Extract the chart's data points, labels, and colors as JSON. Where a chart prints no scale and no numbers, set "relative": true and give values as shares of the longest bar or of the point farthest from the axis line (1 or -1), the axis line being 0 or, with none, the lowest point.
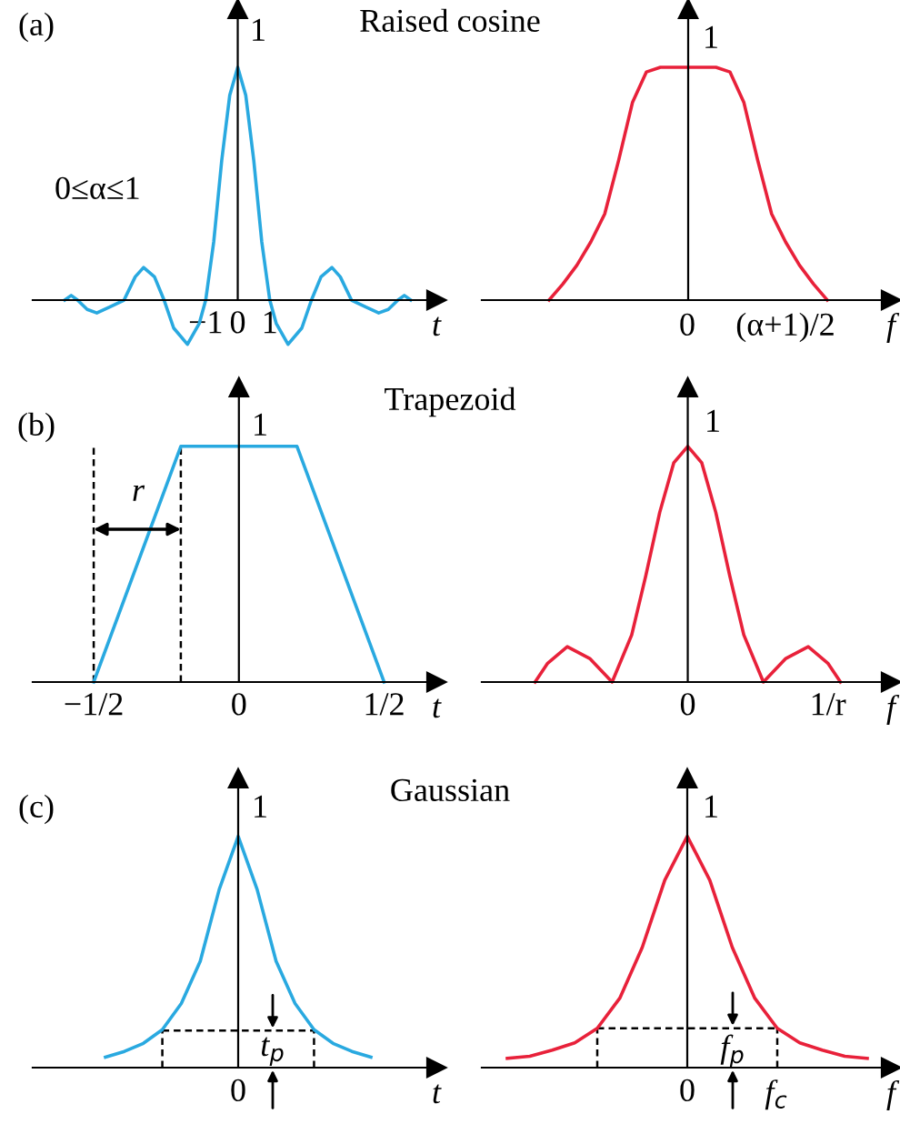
{
  "chart_data": [
    {
      "type": "line",
      "relative": true,
      "title": "Raised cosine",
      "xlabel": "t",
      "xlim": [
        -6.4,
        6.2
      ],
      "xticks": [
        {
          "value": -1,
          "label": "−1"
        },
        0,
        1
      ],
      "annotations": [
        "(a)",
        "0≤α≤1",
        "1"
      ],
      "series": [
        {
          "color": "#29a9e0",
          "x": [
            -5.4,
            -5.2,
            -5.0,
            -4.7,
            -4.4,
            -4.0,
            -3.55,
            -3.2,
            -2.94,
            -2.6,
            -2.3,
            -2.0,
            -1.57,
            -1.2,
            -1.0,
            -0.75,
            -0.5,
            -0.25,
            0,
            0.25,
            0.5,
            0.75,
            1.0,
            1.2,
            1.57,
            2.0,
            2.3,
            2.6,
            2.94,
            3.2,
            3.55,
            4.0,
            4.4,
            4.7,
            5.0,
            5.2,
            5.4
          ],
          "values": [
            0.0,
            0.02,
            0.0,
            -0.04,
            -0.055,
            -0.03,
            0.0,
            0.1,
            0.14,
            0.1,
            0.0,
            -0.12,
            -0.19,
            -0.1,
            0.0,
            0.25,
            0.6,
            0.88,
            1,
            0.88,
            0.6,
            0.25,
            0.0,
            -0.1,
            -0.19,
            -0.12,
            0.0,
            0.1,
            0.14,
            0.1,
            0.0,
            -0.03,
            -0.055,
            -0.04,
            0.0,
            0.02,
            0.0
          ]
        }
      ]
    },
    {
      "type": "line",
      "relative": true,
      "xlabel": "f",
      "categories": [
        null,
        null,
        null,
        null,
        null,
        null,
        null,
        null,
        null,
        null,
        null,
        null,
        null,
        null,
        null,
        null,
        null,
        null,
        null,
        null,
        null
      ],
      "annotations": [
        "1",
        "0",
        "(α+1)/2"
      ],
      "series": [
        {
          "color": "#e8213a",
          "values": [
            0,
            0.07,
            0.15,
            0.25,
            0.37,
            0.6,
            0.85,
            0.98,
            1,
            1,
            1,
            1,
            1,
            0.98,
            0.85,
            0.6,
            0.37,
            0.25,
            0.15,
            0.07,
            0
          ]
        }
      ]
    },
    {
      "type": "line",
      "relative": true,
      "title": "Trapezoid",
      "xlabel": "t",
      "xlim": [
        -0.71,
        0.68
      ],
      "xticks": [
        {
          "value": -0.5,
          "label": "−1/2"
        },
        0,
        {
          "value": 0.5,
          "label": "1/2"
        }
      ],
      "annotations": [
        "(b)",
        "r",
        "1"
      ],
      "series": [
        {
          "color": "#000000",
          "line_style": "dashed",
          "x": [
            -0.5,
            -0.5
          ],
          "values": [
            0,
            1
          ]
        },
        {
          "color": "#000000",
          "line_style": "dashed",
          "x": [
            -0.2,
            -0.2
          ],
          "values": [
            0,
            1
          ]
        },
        {
          "color": "#29a9e0",
          "x": [
            -0.5,
            -0.2,
            0.2,
            0.5
          ],
          "values": [
            0,
            1,
            1,
            0
          ]
        }
      ]
    },
    {
      "type": "line",
      "relative": true,
      "xlabel": "f",
      "xlim": [
        -1.47,
        1.45
      ],
      "xticks": [
        0,
        {
          "value": 1,
          "label": "1/r"
        }
      ],
      "annotations": [
        "1"
      ],
      "series": [
        {
          "color": "#e8213a",
          "x": [
            -1.09,
            -1.0,
            -0.86,
            -0.7,
            -0.54,
            -0.4,
            -0.3,
            -0.2,
            -0.1,
            0,
            0.1,
            0.2,
            0.3,
            0.4,
            0.54,
            0.7,
            0.86,
            1.0,
            1.09
          ],
          "values": [
            0,
            0.08,
            0.15,
            0.1,
            0,
            0.2,
            0.45,
            0.72,
            0.93,
            1,
            0.93,
            0.72,
            0.45,
            0.2,
            0,
            0.1,
            0.15,
            0.08,
            0
          ]
        }
      ]
    },
    {
      "type": "line",
      "relative": true,
      "title": "Gaussian",
      "xlabel": "t",
      "categories": [
        null,
        null,
        null,
        null,
        null,
        null,
        null,
        null,
        null,
        null,
        null,
        null,
        null,
        null,
        null
      ],
      "annotations": [
        "(c)",
        "1",
        "t$_{p}$",
        "0"
      ],
      "series": [
        {
          "color": "#000000",
          "line_style": "dashed",
          "values": [
            null,
            null,
            null,
            0.16,
            0.16,
            0.16,
            0.16,
            0.16,
            0.16,
            0.16,
            0.16,
            0.16,
            null,
            null,
            null
          ]
        },
        {
          "color": "#29a9e0",
          "values": [
            0.045,
            0.07,
            0.105,
            0.164,
            0.277,
            0.46,
            0.77,
            1,
            0.77,
            0.46,
            0.277,
            0.164,
            0.105,
            0.07,
            0.045
          ]
        }
      ]
    },
    {
      "type": "line",
      "relative": true,
      "xlabel": "f",
      "categories": [
        null,
        null,
        null,
        null,
        null,
        null,
        null,
        null,
        null,
        null,
        null,
        null,
        null,
        null,
        null,
        null,
        null
      ],
      "annotations": [
        "1",
        "f$_{p}$",
        "0",
        "f$_{c}$"
      ],
      "series": [
        {
          "color": "#000000",
          "line_style": "dashed",
          "values": [
            null,
            null,
            null,
            null,
            0.17,
            0.17,
            0.17,
            0.17,
            0.17,
            0.17,
            0.17,
            0.17,
            0.17,
            null,
            null,
            null,
            null
          ]
        },
        {
          "color": "#e8213a",
          "values": [
            0.04,
            0.049,
            0.076,
            0.107,
            0.17,
            0.3,
            0.52,
            0.81,
            1,
            0.81,
            0.52,
            0.3,
            0.17,
            0.107,
            0.076,
            0.049,
            0.04
          ]
        }
      ]
    }
  ]
}
